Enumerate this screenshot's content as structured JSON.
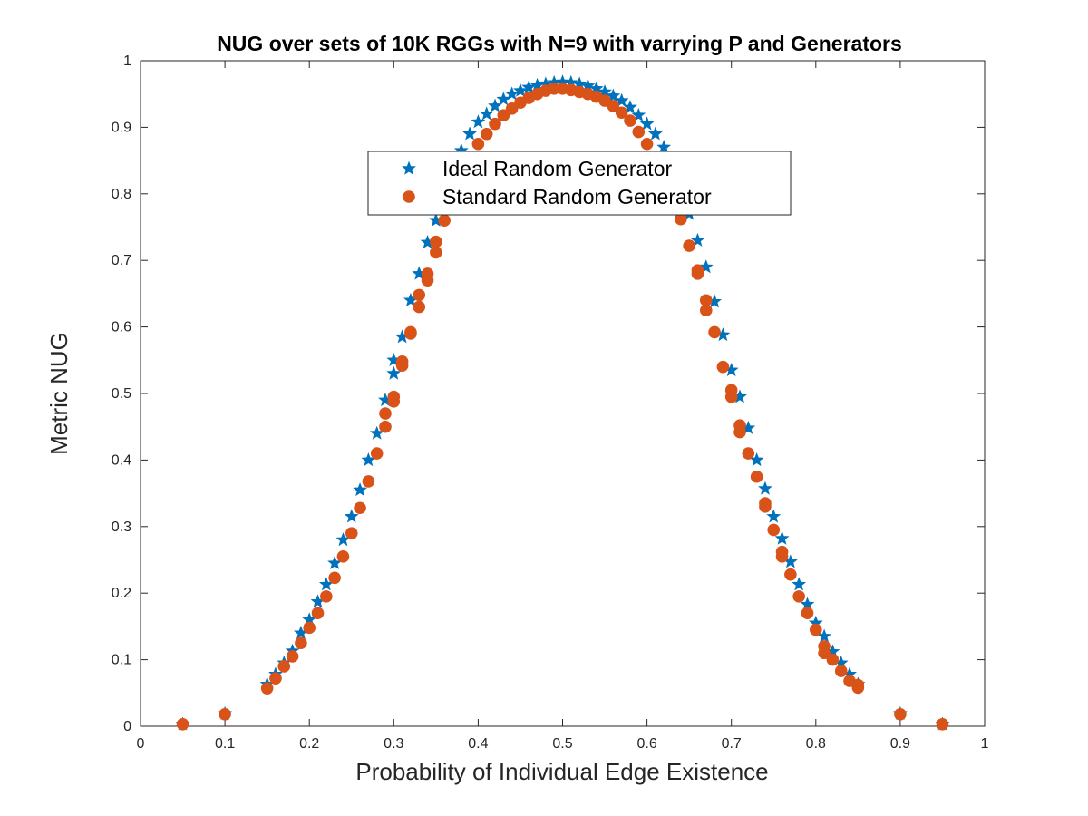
{
  "chart_data": {
    "type": "scatter",
    "title": "NUG over sets of 10K RGGs with N=9 with varrying P and Generators",
    "xlabel": "Probability of Individual Edge Existence",
    "ylabel": "Metric NUG",
    "xlim": [
      0,
      1
    ],
    "ylim": [
      0,
      1
    ],
    "xticks": [
      "0",
      "0.1",
      "0.2",
      "0.3",
      "0.4",
      "0.5",
      "0.6",
      "0.7",
      "0.8",
      "0.9",
      "1"
    ],
    "yticks": [
      "0",
      "0.1",
      "0.2",
      "0.3",
      "0.4",
      "0.5",
      "0.6",
      "0.7",
      "0.8",
      "0.9",
      "1"
    ],
    "grid": false,
    "legend_position": "top-center",
    "series": [
      {
        "name": "Ideal Random Generator",
        "marker": "star",
        "color": "#0072BD",
        "points": [
          [
            0.05,
            0.003
          ],
          [
            0.1,
            0.019
          ],
          [
            0.15,
            0.063
          ],
          [
            0.16,
            0.078
          ],
          [
            0.17,
            0.095
          ],
          [
            0.18,
            0.113
          ],
          [
            0.19,
            0.14
          ],
          [
            0.2,
            0.16
          ],
          [
            0.21,
            0.187
          ],
          [
            0.22,
            0.213
          ],
          [
            0.23,
            0.245
          ],
          [
            0.24,
            0.28
          ],
          [
            0.25,
            0.315
          ],
          [
            0.26,
            0.355
          ],
          [
            0.27,
            0.4
          ],
          [
            0.28,
            0.44
          ],
          [
            0.29,
            0.49
          ],
          [
            0.3,
            0.55
          ],
          [
            0.3,
            0.53
          ],
          [
            0.31,
            0.585
          ],
          [
            0.32,
            0.64
          ],
          [
            0.33,
            0.68
          ],
          [
            0.34,
            0.727
          ],
          [
            0.35,
            0.76
          ],
          [
            0.36,
            0.8
          ],
          [
            0.37,
            0.835
          ],
          [
            0.38,
            0.865
          ],
          [
            0.39,
            0.89
          ],
          [
            0.4,
            0.908
          ],
          [
            0.41,
            0.92
          ],
          [
            0.42,
            0.932
          ],
          [
            0.43,
            0.942
          ],
          [
            0.44,
            0.95
          ],
          [
            0.45,
            0.955
          ],
          [
            0.46,
            0.96
          ],
          [
            0.47,
            0.963
          ],
          [
            0.48,
            0.965
          ],
          [
            0.49,
            0.967
          ],
          [
            0.5,
            0.968
          ],
          [
            0.51,
            0.967
          ],
          [
            0.52,
            0.965
          ],
          [
            0.53,
            0.962
          ],
          [
            0.54,
            0.958
          ],
          [
            0.55,
            0.953
          ],
          [
            0.56,
            0.947
          ],
          [
            0.57,
            0.94
          ],
          [
            0.58,
            0.93
          ],
          [
            0.59,
            0.918
          ],
          [
            0.6,
            0.905
          ],
          [
            0.61,
            0.89
          ],
          [
            0.62,
            0.87
          ],
          [
            0.63,
            0.84
          ],
          [
            0.64,
            0.805
          ],
          [
            0.65,
            0.77
          ],
          [
            0.66,
            0.73
          ],
          [
            0.67,
            0.69
          ],
          [
            0.68,
            0.638
          ],
          [
            0.69,
            0.588
          ],
          [
            0.7,
            0.535
          ],
          [
            0.71,
            0.495
          ],
          [
            0.72,
            0.448
          ],
          [
            0.73,
            0.4
          ],
          [
            0.74,
            0.357
          ],
          [
            0.75,
            0.315
          ],
          [
            0.76,
            0.282
          ],
          [
            0.77,
            0.247
          ],
          [
            0.78,
            0.213
          ],
          [
            0.79,
            0.183
          ],
          [
            0.8,
            0.155
          ],
          [
            0.81,
            0.135
          ],
          [
            0.82,
            0.112
          ],
          [
            0.83,
            0.095
          ],
          [
            0.84,
            0.078
          ],
          [
            0.85,
            0.063
          ],
          [
            0.9,
            0.019
          ],
          [
            0.95,
            0.003
          ]
        ]
      },
      {
        "name": "Standard Random Generator",
        "marker": "circle",
        "color": "#D95319",
        "points": [
          [
            0.05,
            0.003
          ],
          [
            0.1,
            0.018
          ],
          [
            0.15,
            0.057
          ],
          [
            0.16,
            0.072
          ],
          [
            0.17,
            0.09
          ],
          [
            0.18,
            0.105
          ],
          [
            0.19,
            0.125
          ],
          [
            0.2,
            0.148
          ],
          [
            0.21,
            0.17
          ],
          [
            0.22,
            0.195
          ],
          [
            0.23,
            0.223
          ],
          [
            0.24,
            0.255
          ],
          [
            0.25,
            0.29
          ],
          [
            0.26,
            0.328
          ],
          [
            0.27,
            0.368
          ],
          [
            0.28,
            0.41
          ],
          [
            0.29,
            0.47
          ],
          [
            0.29,
            0.45
          ],
          [
            0.3,
            0.495
          ],
          [
            0.3,
            0.488
          ],
          [
            0.31,
            0.548
          ],
          [
            0.31,
            0.542
          ],
          [
            0.32,
            0.592
          ],
          [
            0.32,
            0.59
          ],
          [
            0.33,
            0.648
          ],
          [
            0.33,
            0.63
          ],
          [
            0.34,
            0.68
          ],
          [
            0.34,
            0.67
          ],
          [
            0.35,
            0.728
          ],
          [
            0.35,
            0.712
          ],
          [
            0.36,
            0.76
          ],
          [
            0.36,
            0.775
          ],
          [
            0.37,
            0.805
          ],
          [
            0.38,
            0.825
          ],
          [
            0.39,
            0.85
          ],
          [
            0.4,
            0.875
          ],
          [
            0.41,
            0.89
          ],
          [
            0.42,
            0.905
          ],
          [
            0.43,
            0.918
          ],
          [
            0.44,
            0.928
          ],
          [
            0.45,
            0.937
          ],
          [
            0.46,
            0.944
          ],
          [
            0.47,
            0.95
          ],
          [
            0.48,
            0.955
          ],
          [
            0.49,
            0.958
          ],
          [
            0.5,
            0.958
          ],
          [
            0.51,
            0.956
          ],
          [
            0.52,
            0.953
          ],
          [
            0.53,
            0.95
          ],
          [
            0.54,
            0.946
          ],
          [
            0.55,
            0.94
          ],
          [
            0.56,
            0.932
          ],
          [
            0.57,
            0.922
          ],
          [
            0.58,
            0.91
          ],
          [
            0.59,
            0.893
          ],
          [
            0.6,
            0.875
          ],
          [
            0.61,
            0.855
          ],
          [
            0.62,
            0.83
          ],
          [
            0.63,
            0.8
          ],
          [
            0.64,
            0.762
          ],
          [
            0.65,
            0.722
          ],
          [
            0.66,
            0.68
          ],
          [
            0.66,
            0.685
          ],
          [
            0.67,
            0.64
          ],
          [
            0.67,
            0.625
          ],
          [
            0.68,
            0.592
          ],
          [
            0.69,
            0.54
          ],
          [
            0.7,
            0.505
          ],
          [
            0.7,
            0.495
          ],
          [
            0.71,
            0.452
          ],
          [
            0.71,
            0.442
          ],
          [
            0.72,
            0.41
          ],
          [
            0.73,
            0.375
          ],
          [
            0.74,
            0.335
          ],
          [
            0.74,
            0.33
          ],
          [
            0.75,
            0.295
          ],
          [
            0.76,
            0.262
          ],
          [
            0.76,
            0.255
          ],
          [
            0.77,
            0.228
          ],
          [
            0.78,
            0.195
          ],
          [
            0.79,
            0.17
          ],
          [
            0.8,
            0.145
          ],
          [
            0.81,
            0.12
          ],
          [
            0.81,
            0.11
          ],
          [
            0.82,
            0.1
          ],
          [
            0.83,
            0.083
          ],
          [
            0.84,
            0.068
          ],
          [
            0.85,
            0.058
          ],
          [
            0.85,
            0.062
          ],
          [
            0.9,
            0.018
          ],
          [
            0.95,
            0.003
          ]
        ]
      }
    ]
  }
}
